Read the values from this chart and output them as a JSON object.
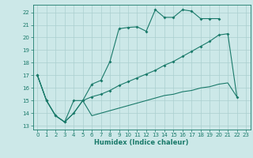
{
  "xlabel": "Humidex (Indice chaleur)",
  "background_color": "#cce8e8",
  "grid_color": "#aacfcf",
  "line_color": "#1a7a6a",
  "xlim": [
    -0.5,
    23.5
  ],
  "ylim": [
    12.7,
    22.6
  ],
  "yticks": [
    13,
    14,
    15,
    16,
    17,
    18,
    19,
    20,
    21,
    22
  ],
  "xticks": [
    0,
    1,
    2,
    3,
    4,
    5,
    6,
    7,
    8,
    9,
    10,
    11,
    12,
    13,
    14,
    15,
    16,
    17,
    18,
    19,
    20,
    21,
    22,
    23
  ],
  "series1_x": [
    0,
    1,
    2,
    3,
    4,
    5,
    6,
    7,
    8,
    9,
    10,
    11,
    12,
    13,
    14,
    15,
    16,
    17,
    18,
    19,
    20
  ],
  "series1_y": [
    17,
    15,
    13.8,
    13.3,
    15.0,
    15.0,
    16.3,
    16.6,
    18.1,
    20.7,
    20.8,
    20.85,
    20.5,
    22.2,
    21.6,
    21.6,
    22.2,
    22.1,
    21.5,
    21.5,
    21.5
  ],
  "series2_x": [
    0,
    1,
    2,
    3,
    4,
    5,
    6,
    7,
    8,
    9,
    10,
    11,
    12,
    13,
    14,
    15,
    16,
    17,
    18,
    19,
    20,
    21,
    22
  ],
  "series2_y": [
    17,
    15,
    13.8,
    13.3,
    14.0,
    15.0,
    15.3,
    15.5,
    15.8,
    16.2,
    16.5,
    16.8,
    17.1,
    17.4,
    17.8,
    18.1,
    18.5,
    18.9,
    19.3,
    19.7,
    20.2,
    20.3,
    15.3
  ],
  "series3_x": [
    0,
    1,
    2,
    3,
    4,
    5,
    6,
    7,
    8,
    9,
    10,
    11,
    12,
    13,
    14,
    15,
    16,
    17,
    18,
    19,
    20,
    21,
    22
  ],
  "series3_y": [
    17,
    15,
    13.8,
    13.3,
    14.0,
    15.0,
    13.8,
    14.0,
    14.2,
    14.4,
    14.6,
    14.8,
    15.0,
    15.2,
    15.4,
    15.5,
    15.7,
    15.8,
    16.0,
    16.1,
    16.3,
    16.4,
    15.3
  ]
}
